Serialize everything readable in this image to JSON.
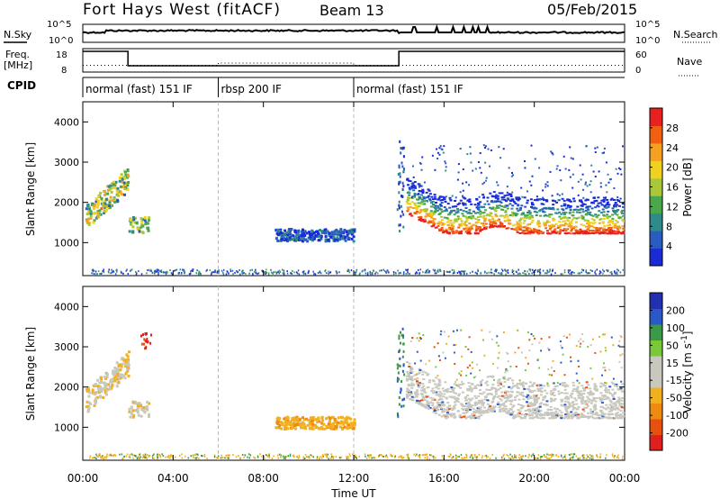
{
  "header": {
    "title": "Fort Hays West (fitACF)",
    "beam": "Beam 13",
    "date": "05/Feb/2015"
  },
  "side_labels": {
    "nsky": "N.Sky",
    "nsearch": "N.Search",
    "freq_line1": "Freq.",
    "freq_line2": "[MHz]",
    "nave": "Nave",
    "cpid": "CPID",
    "n_tick_hi": "10^5",
    "n_tick_lo": "10^0",
    "freq_tick_hi": "18",
    "freq_tick_lo": "8",
    "nave_tick_hi": "60",
    "nave_tick_lo": "0"
  },
  "cpid_segments": [
    {
      "label": "normal (fast) 151 IF",
      "start_hour": 0,
      "end_hour": 6
    },
    {
      "label": "rbsp 200 IF",
      "start_hour": 6,
      "end_hour": 12
    },
    {
      "label": "normal (fast) 151 IF",
      "start_hour": 12,
      "end_hour": 24
    }
  ],
  "x_axis": {
    "label": "Time UT",
    "range_hours": [
      0,
      24
    ],
    "ticks": [
      "00:00",
      "04:00",
      "08:00",
      "12:00",
      "16:00",
      "20:00",
      "00:00"
    ]
  },
  "y_axis": {
    "label": "Slant Range [km]",
    "range_km": [
      180,
      4500
    ],
    "ticks": [
      "1000",
      "2000",
      "3000",
      "4000"
    ]
  },
  "power_colorbar": {
    "label": "Power [dB]",
    "ticks": [
      "4",
      "8",
      "12",
      "16",
      "20",
      "24",
      "28"
    ],
    "colors": [
      "#1a2bd6",
      "#2a5cc0",
      "#2f8a8a",
      "#4aa84a",
      "#a8c83a",
      "#f0d020",
      "#f5a020",
      "#f06010",
      "#e82020"
    ]
  },
  "velocity_colorbar": {
    "label": "Velocity [m s^-1]",
    "ticks": [
      "200",
      "100",
      "50",
      "15",
      "-15",
      "-50",
      "-100",
      "-200"
    ],
    "colors": [
      "#2030b0",
      "#2a58c8",
      "#3a9a48",
      "#7ac83a",
      "#c8c8be",
      "#c8c8be",
      "#f2b020",
      "#ee8a10",
      "#e85010",
      "#e02020"
    ]
  },
  "chart_data": [
    {
      "type": "heatmap",
      "title": "Power",
      "xlabel": "Time UT",
      "ylabel": "Slant Range [km]",
      "xlim": [
        0,
        24
      ],
      "ylim": [
        180,
        4500
      ],
      "colorbar": "Power [dB]",
      "features": [
        {
          "feature": "echo band",
          "time_start_h": 0.1,
          "time_end_h": 2.0,
          "range_start_km": 1300,
          "range_end_km": 2500,
          "power_db": 14
        },
        {
          "feature": "echo patch",
          "time_start_h": 2.0,
          "time_end_h": 3.0,
          "range_start_km": 1200,
          "range_end_km": 1600,
          "power_db": 10
        },
        {
          "feature": "echo patch",
          "time_start_h": 8.5,
          "time_end_h": 12.0,
          "range_start_km": 1000,
          "range_end_km": 1300,
          "power_db": 6
        },
        {
          "feature": "echo band",
          "time_start_h": 14.3,
          "time_end_h": 24.0,
          "range_start_km": 1100,
          "range_end_km": 2000,
          "power_db": 24
        }
      ]
    },
    {
      "type": "heatmap",
      "title": "Velocity",
      "xlabel": "Time UT",
      "ylabel": "Slant Range [km]",
      "xlim": [
        0,
        24
      ],
      "ylim": [
        180,
        4500
      ],
      "colorbar": "Velocity [m s^-1]",
      "features": [
        {
          "feature": "echo band",
          "time_start_h": 0.1,
          "time_end_h": 2.0,
          "range_start_km": 1300,
          "range_end_km": 2500,
          "velocity_ms": -20
        },
        {
          "feature": "echo patch",
          "time_start_h": 2.5,
          "time_end_h": 3.0,
          "range_start_km": 2900,
          "range_end_km": 3300,
          "velocity_ms": -200
        },
        {
          "feature": "echo patch",
          "time_start_h": 8.5,
          "time_end_h": 12.0,
          "range_start_km": 900,
          "range_end_km": 1350,
          "velocity_ms": -50
        },
        {
          "feature": "echo band",
          "time_start_h": 14.3,
          "time_end_h": 24.0,
          "range_start_km": 1100,
          "range_end_km": 2000,
          "velocity_ms": 0
        }
      ]
    }
  ]
}
